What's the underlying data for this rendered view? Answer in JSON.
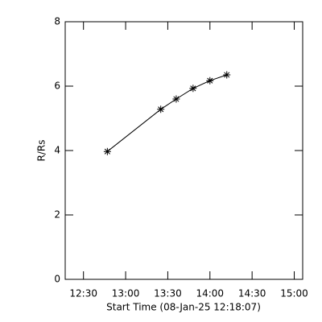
{
  "chart_data": {
    "type": "scatter",
    "xlabel": "Start Time (08-Jan-25 12:18:07)",
    "ylabel": "R/Rs",
    "x": [
      767,
      805,
      816,
      828,
      840,
      852
    ],
    "values": [
      3.97,
      5.28,
      5.6,
      5.93,
      6.17,
      6.35
    ],
    "color": "#000000",
    "xlim": [
      737,
      906
    ],
    "xticks": [
      {
        "value": 750,
        "label": "12:30"
      },
      {
        "value": 780,
        "label": "13:00"
      },
      {
        "value": 810,
        "label": "13:30"
      },
      {
        "value": 840,
        "label": "14:00"
      },
      {
        "value": 870,
        "label": "14:30"
      },
      {
        "value": 900,
        "label": "15:00"
      }
    ],
    "ylim": [
      0,
      8
    ],
    "yticks": [
      0,
      2,
      4,
      6,
      8
    ]
  }
}
